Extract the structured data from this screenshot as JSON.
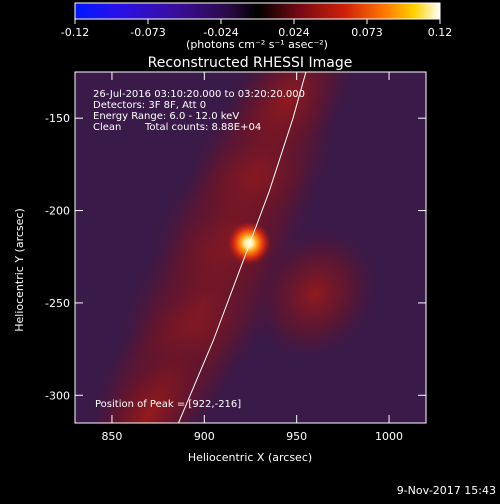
{
  "colorbar": {
    "ticks": [
      "-0.12",
      "-0.073",
      "-0.024",
      "0.024",
      "0.073",
      "0.12"
    ],
    "unit_label": "(photons cm⁻² s⁻¹ asec⁻²)"
  },
  "chart_data": {
    "type": "heatmap",
    "title": "Reconstructed RHESSI Image",
    "xlabel": "Heliocentric X (arcsec)",
    "ylabel": "Heliocentric Y (arcsec)",
    "xlim": [
      830,
      1020
    ],
    "ylim": [
      -315,
      -125
    ],
    "xticks": [
      850,
      900,
      950,
      1000
    ],
    "yticks": [
      -150,
      -200,
      -250,
      -300
    ],
    "color_range": [
      -0.12,
      0.12
    ],
    "peak": {
      "x": 922,
      "y": -216
    },
    "limb_curve": [
      [
        886,
        -315
      ],
      [
        905,
        -270
      ],
      [
        920,
        -230
      ],
      [
        935,
        -190
      ],
      [
        948,
        -150
      ],
      [
        955,
        -125
      ]
    ],
    "annotations": {
      "time_range": "26-Jul-2016 03:10:20.000 to 03:20:20.000",
      "detectors": "Detectors: 3F 8F, Att 0",
      "energy_range": "Energy Range: 6.0 - 12.0 keV",
      "clean": "Clean",
      "total_counts": "Total counts: 8.88E+04",
      "peak_position": "Position of Peak = [922,-216]"
    }
  },
  "footer": {
    "timestamp": "9-Nov-2017 15:43"
  }
}
